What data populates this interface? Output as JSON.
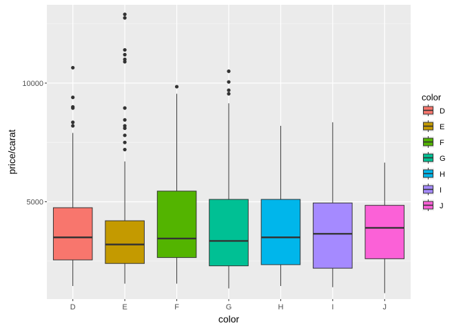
{
  "chart_data": {
    "type": "boxplot",
    "title": "",
    "xlabel": "color",
    "ylabel": "price/carat",
    "ylim": [
      900,
      13300
    ],
    "yticks": [
      5000,
      10000
    ],
    "categories": [
      "D",
      "E",
      "F",
      "G",
      "H",
      "I",
      "J"
    ],
    "colors": [
      "#F8766D",
      "#C49A00",
      "#53B400",
      "#00C094",
      "#00B6EB",
      "#A58AFF",
      "#FB61D7"
    ],
    "boxes": [
      {
        "name": "D",
        "whisker_low": 1450,
        "q1": 2550,
        "median": 3500,
        "q3": 4750,
        "whisker_high": 7900,
        "outliers": [
          8200,
          8350,
          8950,
          9000,
          9400,
          10650
        ]
      },
      {
        "name": "E",
        "whisker_low": 1550,
        "q1": 2400,
        "median": 3200,
        "q3": 4200,
        "whisker_high": 6700,
        "outliers": [
          7200,
          7500,
          7800,
          8100,
          8200,
          8450,
          8950,
          10900,
          11000,
          11200,
          11400,
          12750,
          12900
        ]
      },
      {
        "name": "F",
        "whisker_low": 1550,
        "q1": 2650,
        "median": 3450,
        "q3": 5450,
        "whisker_high": 9550,
        "outliers": [
          9850
        ]
      },
      {
        "name": "G",
        "whisker_low": 1350,
        "q1": 2300,
        "median": 3350,
        "q3": 5100,
        "whisker_high": 9150,
        "outliers": [
          9550,
          9700,
          10050,
          10500
        ]
      },
      {
        "name": "H",
        "whisker_low": 1450,
        "q1": 2350,
        "median": 3500,
        "q3": 5100,
        "whisker_high": 8200,
        "outliers": []
      },
      {
        "name": "I",
        "whisker_low": 1400,
        "q1": 2200,
        "median": 3650,
        "q3": 4950,
        "whisker_high": 8350,
        "outliers": []
      },
      {
        "name": "J",
        "whisker_low": 1150,
        "q1": 2600,
        "median": 3900,
        "q3": 4850,
        "whisker_high": 6650,
        "outliers": []
      }
    ],
    "legend": {
      "title": "color",
      "entries": [
        "D",
        "E",
        "F",
        "G",
        "H",
        "I",
        "J"
      ],
      "position": "right"
    },
    "grid": true
  }
}
